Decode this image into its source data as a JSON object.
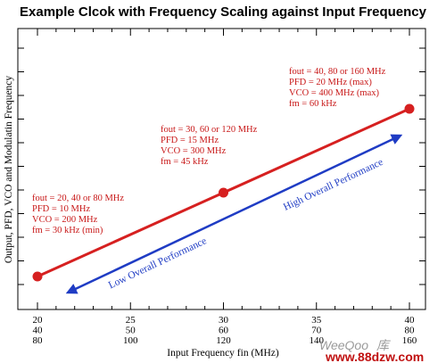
{
  "chart_data": {
    "type": "line",
    "title": "Example Clcok with Frequency Scaling against Input Frequency",
    "xlabel": "Input Frequency fin (MHz)",
    "ylabel": "Output, PFD, VCO and Modulatin Frequency",
    "xlim": [
      20,
      40
    ],
    "x_ticks": [
      [
        "20",
        "40",
        "80"
      ],
      [
        "25",
        "50",
        "100"
      ],
      [
        "30",
        "60",
        "120"
      ],
      [
        "35",
        "70",
        "140"
      ],
      [
        "40",
        "80",
        "160"
      ]
    ],
    "x_tick_values": [
      20,
      25,
      30,
      35,
      40
    ],
    "series": [
      {
        "x": [
          20,
          30,
          40
        ],
        "y": [
          1,
          2,
          3
        ],
        "color": "#d62020"
      }
    ],
    "annotations": [
      {
        "x": 20,
        "lines": [
          "fout = 20, 40 or 80 MHz",
          "PFD = 10 MHz",
          "VCO = 200 MHz",
          "fm = 30 kHz (min)"
        ]
      },
      {
        "x": 30,
        "lines": [
          "fout = 30, 60 or 120 MHz",
          "PFD = 15 MHz",
          "VCO = 300 MHz",
          "fm = 45 kHz"
        ]
      },
      {
        "x": 40,
        "lines": [
          "fout = 40, 80 or 160 MHz",
          "PFD = 20 MHz (max)",
          "VCO = 400 MHz (max)",
          "fm = 60 kHz"
        ]
      }
    ],
    "arrow_labels": {
      "low": "Low Overall Performance",
      "high": "High Overall Performance"
    },
    "grid": false,
    "y_tick_labels": false
  },
  "watermark": {
    "brand": "WeeQoo",
    "suffix": "库",
    "url": "www.88dzw.com"
  },
  "colors": {
    "series": "#d62020",
    "annotation": "#c81818",
    "arrow": "#1f3cc4"
  }
}
